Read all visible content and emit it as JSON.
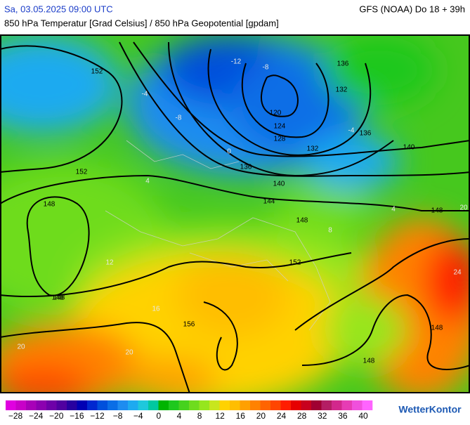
{
  "header": {
    "datetime": "Sa, 03.05.2025 09:00 UTC",
    "model": "GFS (NOAA) Do 18 + 39h",
    "subtitle": "850 hPa Temperatur [Grad Celsius] / 850 hPa Geopotential [gpdam]"
  },
  "map": {
    "geopotential_labels": [
      "152",
      "152",
      "148",
      "148",
      "136",
      "132",
      "136",
      "140",
      "120",
      "124",
      "128",
      "132",
      "136",
      "140",
      "144",
      "148",
      "148",
      "152",
      "156",
      "148",
      "148",
      "148"
    ],
    "temperature_labels": [
      "-12",
      "-8",
      "-4",
      "-4",
      "-8",
      "0",
      "4",
      "4",
      "8",
      "12",
      "16",
      "20",
      "20",
      "24",
      "20"
    ]
  },
  "colorbar": {
    "colors": [
      "#e000e0",
      "#c800c8",
      "#a800b8",
      "#8c00b0",
      "#6e00a8",
      "#5000a0",
      "#2800a0",
      "#0000b4",
      "#0028d0",
      "#0050dc",
      "#0a6ee6",
      "#1e8cf0",
      "#1eaaf0",
      "#1ec8dc",
      "#00c8a0",
      "#00b400",
      "#1ec81e",
      "#46d21e",
      "#6edc1e",
      "#96e61e",
      "#c8e61e",
      "#ffd200",
      "#ffbe00",
      "#ffa000",
      "#ff8200",
      "#ff6400",
      "#ff4600",
      "#ff1e00",
      "#e60000",
      "#c8001e",
      "#a00032",
      "#b41e64",
      "#d2288c",
      "#e63cb4",
      "#f050dc",
      "#ff64ff"
    ],
    "labels": [
      "−28",
      "−24",
      "−20",
      "−16",
      "−12",
      "−8",
      "−4",
      "0",
      "4",
      "8",
      "12",
      "16",
      "20",
      "24",
      "28",
      "32",
      "36",
      "40"
    ]
  },
  "logo": "WetterKontor"
}
